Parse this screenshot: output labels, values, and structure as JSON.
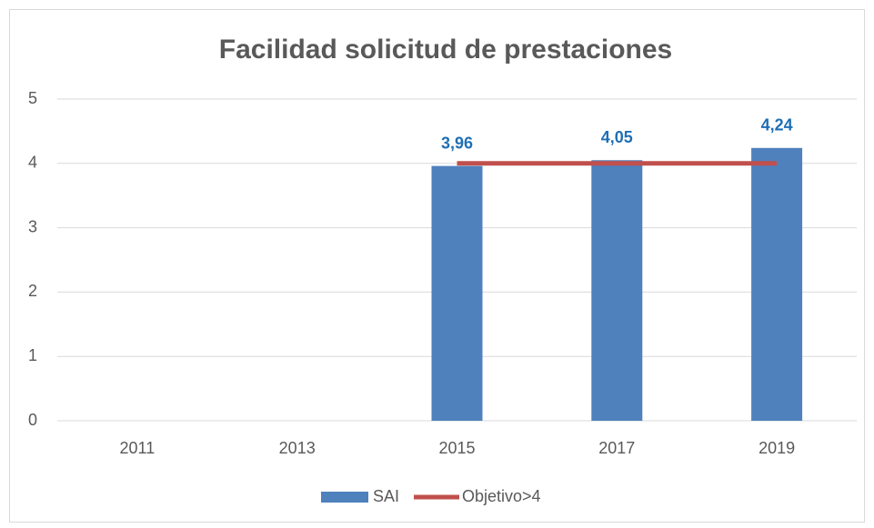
{
  "chart_data": {
    "type": "bar",
    "title": "Facilidad solicitud de prestaciones",
    "categories": [
      "2011",
      "2013",
      "2015",
      "2017",
      "2019"
    ],
    "series": [
      {
        "name": "SAI",
        "type": "bar",
        "color": "#4f81bd",
        "values": [
          null,
          null,
          3.96,
          4.05,
          4.24
        ],
        "value_labels": [
          null,
          null,
          "3,96",
          "4,05",
          "4,24"
        ],
        "label_color": "#1f6fb5"
      },
      {
        "name": "Objetivo>4",
        "type": "line",
        "color": "#c0504d",
        "values": [
          null,
          null,
          4,
          4,
          4
        ]
      }
    ],
    "ylim": [
      0,
      5
    ],
    "yticks": [
      0,
      1,
      2,
      3,
      4,
      5
    ],
    "grid": true,
    "legend": "bottom"
  }
}
